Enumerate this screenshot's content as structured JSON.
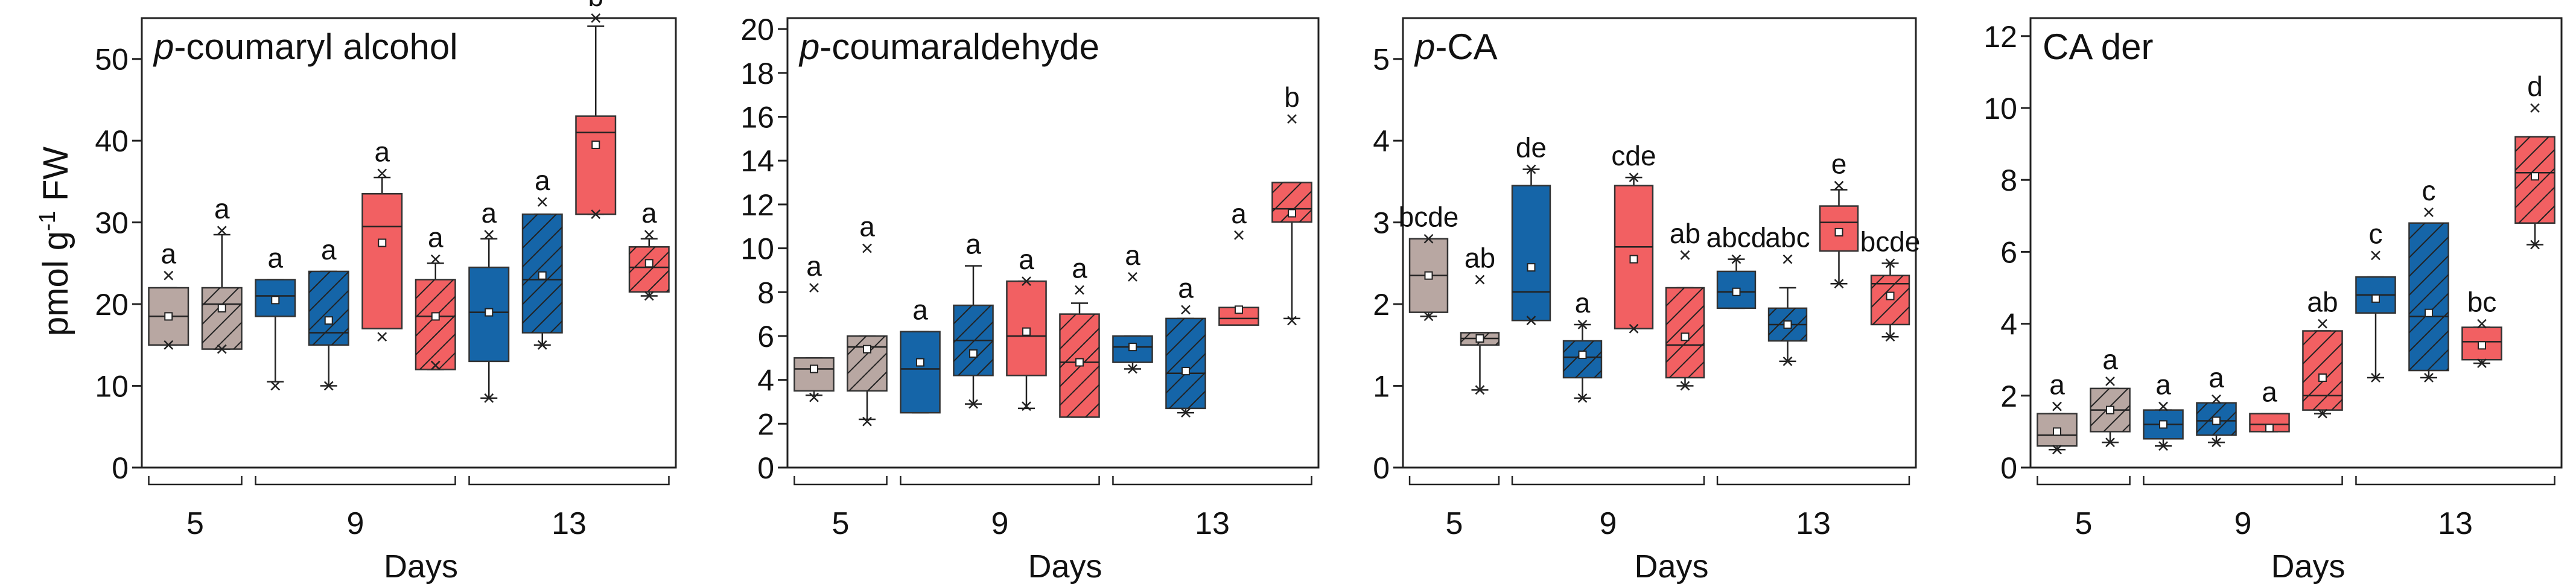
{
  "figure": {
    "y_axis_label_main": "pmol g",
    "y_axis_label_sup": "-1",
    "y_axis_label_tail": " FW",
    "x_axis_label": "Days"
  },
  "legend_note": {
    "colors": {
      "grey": "#b8a7a2",
      "blue": "#1565a8",
      "red": "#f26062",
      "hatch": "#222222",
      "whisker": "#222222"
    }
  },
  "chart_data": [
    {
      "type": "box",
      "title_italic": "p",
      "title_rest": "-coumaryl alcohol",
      "ylim": [
        0,
        55
      ],
      "yticks": [
        0,
        10,
        20,
        30,
        40,
        50
      ],
      "tick_labels": [
        "0",
        "10",
        "20",
        "30",
        "40",
        "50"
      ],
      "day_groups": [
        {
          "label": "5",
          "from": 0,
          "to": 1
        },
        {
          "label": "9",
          "from": 2,
          "to": 5
        },
        {
          "label": "13",
          "from": 6,
          "to": 9
        }
      ],
      "boxes": [
        {
          "color": "grey",
          "hatch": false,
          "q1": 15,
          "median": 18.5,
          "q3": 22,
          "whisker_low": 15,
          "whisker_high": 22,
          "mean": 18.5,
          "outliers": [
            15,
            23.5
          ],
          "letter": "a"
        },
        {
          "color": "grey",
          "hatch": true,
          "q1": 14.5,
          "median": 20,
          "q3": 22,
          "whisker_low": 14.5,
          "whisker_high": 28.5,
          "mean": 19.5,
          "outliers": [
            14.5,
            29
          ],
          "letter": "a"
        },
        {
          "color": "blue",
          "hatch": false,
          "q1": 18.5,
          "median": 21,
          "q3": 23,
          "whisker_low": 10.5,
          "whisker_high": 23,
          "mean": 20.5,
          "outliers": [
            10
          ],
          "letter": "a"
        },
        {
          "color": "blue",
          "hatch": true,
          "q1": 15,
          "median": 16.5,
          "q3": 24,
          "whisker_low": 10,
          "whisker_high": 24,
          "mean": 18,
          "outliers": [
            10
          ],
          "letter": "a"
        },
        {
          "color": "red",
          "hatch": false,
          "q1": 17,
          "median": 29.5,
          "q3": 33.5,
          "whisker_low": 17,
          "whisker_high": 35.5,
          "mean": 27.5,
          "outliers": [
            16,
            36
          ],
          "letter": "a"
        },
        {
          "color": "red",
          "hatch": true,
          "q1": 12,
          "median": 18.5,
          "q3": 23,
          "whisker_low": 12,
          "whisker_high": 25,
          "mean": 18.5,
          "outliers": [
            12.5,
            25.5
          ],
          "letter": "a"
        },
        {
          "color": "blue",
          "hatch": false,
          "q1": 13,
          "median": 19,
          "q3": 24.5,
          "whisker_low": 8.5,
          "whisker_high": 28,
          "mean": 19,
          "outliers": [
            8.5,
            28.5
          ],
          "letter": "a"
        },
        {
          "color": "blue",
          "hatch": true,
          "q1": 16.5,
          "median": 23,
          "q3": 31,
          "whisker_low": 15,
          "whisker_high": 31,
          "mean": 23.5,
          "outliers": [
            15,
            32.5
          ],
          "letter": "a"
        },
        {
          "color": "red",
          "hatch": false,
          "q1": 31,
          "median": 41,
          "q3": 43,
          "whisker_low": 31,
          "whisker_high": 54,
          "mean": 39.5,
          "outliers": [
            31,
            55
          ],
          "letter": "b"
        },
        {
          "color": "red",
          "hatch": true,
          "q1": 21.5,
          "median": 24.5,
          "q3": 27,
          "whisker_low": 21,
          "whisker_high": 28,
          "mean": 25,
          "outliers": [
            21,
            28.5
          ],
          "letter": "a"
        }
      ]
    },
    {
      "type": "box",
      "title_italic": "p",
      "title_rest": "-coumaraldehyde",
      "ylim": [
        0,
        20.5
      ],
      "yticks": [
        0,
        2,
        4,
        6,
        8,
        10,
        12,
        14,
        16,
        18,
        20
      ],
      "tick_labels": [
        "0",
        "2",
        "4",
        "6",
        "8",
        "10",
        "12",
        "14",
        "16",
        "18",
        "20"
      ],
      "day_groups": [
        {
          "label": "5",
          "from": 0,
          "to": 1
        },
        {
          "label": "9",
          "from": 2,
          "to": 5
        },
        {
          "label": "13",
          "from": 6,
          "to": 9
        }
      ],
      "boxes": [
        {
          "color": "grey",
          "hatch": false,
          "q1": 3.5,
          "median": 4.5,
          "q3": 5,
          "whisker_low": 3.3,
          "whisker_high": 5,
          "mean": 4.5,
          "outliers": [
            3.2,
            8.2
          ],
          "letter": "a"
        },
        {
          "color": "grey",
          "hatch": true,
          "q1": 3.5,
          "median": 5.5,
          "q3": 6,
          "whisker_low": 2.2,
          "whisker_high": 6,
          "mean": 5.4,
          "outliers": [
            2.1,
            10
          ],
          "letter": "a"
        },
        {
          "color": "blue",
          "hatch": false,
          "q1": 2.5,
          "median": 4.5,
          "q3": 6.2,
          "whisker_low": 2.5,
          "whisker_high": 6.2,
          "mean": 4.8,
          "outliers": [],
          "letter": "a"
        },
        {
          "color": "blue",
          "hatch": true,
          "q1": 4.2,
          "median": 5.8,
          "q3": 7.4,
          "whisker_low": 2.9,
          "whisker_high": 9.2,
          "mean": 5.2,
          "outliers": [
            2.9
          ],
          "letter": "a"
        },
        {
          "color": "red",
          "hatch": false,
          "q1": 4.2,
          "median": 6,
          "q3": 8.5,
          "whisker_low": 2.7,
          "whisker_high": 8.5,
          "mean": 6.2,
          "outliers": [
            2.8,
            8.5
          ],
          "letter": "a"
        },
        {
          "color": "red",
          "hatch": true,
          "q1": 2.3,
          "median": 4.8,
          "q3": 7,
          "whisker_low": 2.3,
          "whisker_high": 7.5,
          "mean": 4.8,
          "outliers": [
            8.1
          ],
          "letter": "a"
        },
        {
          "color": "blue",
          "hatch": false,
          "q1": 4.8,
          "median": 5.5,
          "q3": 6,
          "whisker_low": 4.5,
          "whisker_high": 6,
          "mean": 5.5,
          "outliers": [
            4.5,
            8.7
          ],
          "letter": "a"
        },
        {
          "color": "blue",
          "hatch": true,
          "q1": 2.7,
          "median": 4.3,
          "q3": 6.8,
          "whisker_low": 2.5,
          "whisker_high": 6.8,
          "mean": 4.4,
          "outliers": [
            2.5,
            7.2
          ],
          "letter": "a"
        },
        {
          "color": "red",
          "hatch": false,
          "q1": 6.5,
          "median": 6.8,
          "q3": 7.3,
          "whisker_low": 6.5,
          "whisker_high": 7.3,
          "mean": 7.2,
          "outliers": [
            10.6
          ],
          "letter": "a"
        },
        {
          "color": "red",
          "hatch": true,
          "q1": 11.2,
          "median": 11.8,
          "q3": 13,
          "whisker_low": 6.8,
          "whisker_high": 13,
          "mean": 11.6,
          "outliers": [
            6.7,
            15.9
          ],
          "letter": "b"
        }
      ]
    },
    {
      "type": "box",
      "title_italic": "p",
      "title_rest": "-CA",
      "ylim": [
        0,
        5.5
      ],
      "yticks": [
        0,
        1,
        2,
        3,
        4,
        5
      ],
      "tick_labels": [
        "0",
        "1",
        "2",
        "3",
        "4",
        "5"
      ],
      "day_groups": [
        {
          "label": "5",
          "from": 0,
          "to": 1
        },
        {
          "label": "9",
          "from": 2,
          "to": 5
        },
        {
          "label": "13",
          "from": 6,
          "to": 9
        }
      ],
      "boxes": [
        {
          "color": "grey",
          "hatch": false,
          "q1": 1.9,
          "median": 2.35,
          "q3": 2.8,
          "whisker_low": 1.85,
          "whisker_high": 2.8,
          "mean": 2.35,
          "outliers": [
            1.85,
            2.8
          ],
          "letter": "bcde"
        },
        {
          "color": "grey",
          "hatch": true,
          "q1": 1.5,
          "median": 1.58,
          "q3": 1.65,
          "whisker_low": 0.95,
          "whisker_high": 1.65,
          "mean": 1.58,
          "outliers": [
            0.95,
            2.3
          ],
          "letter": "ab"
        },
        {
          "color": "blue",
          "hatch": false,
          "q1": 1.8,
          "median": 2.15,
          "q3": 3.45,
          "whisker_low": 1.8,
          "whisker_high": 3.65,
          "mean": 2.45,
          "outliers": [
            1.8,
            3.65
          ],
          "letter": "de"
        },
        {
          "color": "blue",
          "hatch": true,
          "q1": 1.1,
          "median": 1.35,
          "q3": 1.55,
          "whisker_low": 0.85,
          "whisker_high": 1.75,
          "mean": 1.38,
          "outliers": [
            0.85,
            1.75
          ],
          "letter": "a"
        },
        {
          "color": "red",
          "hatch": false,
          "q1": 1.7,
          "median": 2.7,
          "q3": 3.45,
          "whisker_low": 1.7,
          "whisker_high": 3.55,
          "mean": 2.55,
          "outliers": [
            1.7,
            3.55
          ],
          "letter": "cde"
        },
        {
          "color": "red",
          "hatch": true,
          "q1": 1.1,
          "median": 1.5,
          "q3": 2.2,
          "whisker_low": 1,
          "whisker_high": 2.2,
          "mean": 1.6,
          "outliers": [
            1.0,
            2.6
          ],
          "letter": "ab"
        },
        {
          "color": "blue",
          "hatch": false,
          "q1": 1.95,
          "median": 2.15,
          "q3": 2.4,
          "whisker_low": 1.95,
          "whisker_high": 2.55,
          "mean": 2.15,
          "outliers": [
            2.55
          ],
          "letter": "abcd"
        },
        {
          "color": "blue",
          "hatch": true,
          "q1": 1.55,
          "median": 1.75,
          "q3": 1.95,
          "whisker_low": 1.3,
          "whisker_high": 2.2,
          "mean": 1.75,
          "outliers": [
            1.3,
            2.55
          ],
          "letter": "abc"
        },
        {
          "color": "red",
          "hatch": false,
          "q1": 2.65,
          "median": 3.0,
          "q3": 3.2,
          "whisker_low": 2.25,
          "whisker_high": 3.4,
          "mean": 2.88,
          "outliers": [
            2.25,
            3.45
          ],
          "letter": "e"
        },
        {
          "color": "red",
          "hatch": true,
          "q1": 1.75,
          "median": 2.25,
          "q3": 2.35,
          "whisker_low": 1.6,
          "whisker_high": 2.5,
          "mean": 2.1,
          "outliers": [
            1.6,
            2.5
          ],
          "letter": "bcde"
        }
      ]
    },
    {
      "type": "box",
      "title_italic": "",
      "title_rest": "CA der",
      "ylim": [
        0,
        12.5
      ],
      "yticks": [
        0,
        2,
        4,
        6,
        8,
        10,
        12
      ],
      "tick_labels": [
        "0",
        "2",
        "4",
        "6",
        "8",
        "10",
        "12"
      ],
      "day_groups": [
        {
          "label": "5",
          "from": 0,
          "to": 1
        },
        {
          "label": "9",
          "from": 2,
          "to": 5
        },
        {
          "label": "13",
          "from": 6,
          "to": 9
        }
      ],
      "boxes": [
        {
          "color": "grey",
          "hatch": false,
          "q1": 0.6,
          "median": 0.9,
          "q3": 1.5,
          "whisker_low": 0.5,
          "whisker_high": 1.5,
          "mean": 1.0,
          "outliers": [
            0.5,
            1.7
          ],
          "letter": "a"
        },
        {
          "color": "grey",
          "hatch": true,
          "q1": 1.0,
          "median": 1.6,
          "q3": 2.2,
          "whisker_low": 0.7,
          "whisker_high": 2.2,
          "mean": 1.6,
          "outliers": [
            0.7,
            2.4
          ],
          "letter": "a"
        },
        {
          "color": "blue",
          "hatch": false,
          "q1": 0.8,
          "median": 1.2,
          "q3": 1.6,
          "whisker_low": 0.6,
          "whisker_high": 1.6,
          "mean": 1.2,
          "outliers": [
            0.6,
            1.7
          ],
          "letter": "a"
        },
        {
          "color": "blue",
          "hatch": true,
          "q1": 0.9,
          "median": 1.3,
          "q3": 1.8,
          "whisker_low": 0.7,
          "whisker_high": 1.8,
          "mean": 1.3,
          "outliers": [
            0.7,
            1.9
          ],
          "letter": "a"
        },
        {
          "color": "red",
          "hatch": false,
          "q1": 1.0,
          "median": 1.2,
          "q3": 1.5,
          "whisker_low": 1.0,
          "whisker_high": 1.5,
          "mean": 1.1,
          "outliers": [],
          "letter": "a"
        },
        {
          "color": "red",
          "hatch": true,
          "q1": 1.6,
          "median": 2.0,
          "q3": 3.8,
          "whisker_low": 1.5,
          "whisker_high": 3.8,
          "mean": 2.5,
          "outliers": [
            1.5,
            4.0
          ],
          "letter": "ab"
        },
        {
          "color": "blue",
          "hatch": false,
          "q1": 4.3,
          "median": 4.8,
          "q3": 5.3,
          "whisker_low": 2.5,
          "whisker_high": 5.3,
          "mean": 4.7,
          "outliers": [
            2.5,
            5.9
          ],
          "letter": "c"
        },
        {
          "color": "blue",
          "hatch": true,
          "q1": 2.7,
          "median": 4.2,
          "q3": 6.8,
          "whisker_low": 2.5,
          "whisker_high": 6.8,
          "mean": 4.3,
          "outliers": [
            2.5,
            7.1
          ],
          "letter": "c"
        },
        {
          "color": "red",
          "hatch": false,
          "q1": 3.0,
          "median": 3.5,
          "q3": 3.9,
          "whisker_low": 2.9,
          "whisker_high": 3.9,
          "mean": 3.4,
          "outliers": [
            2.9,
            4.0
          ],
          "letter": "bc"
        },
        {
          "color": "red",
          "hatch": true,
          "q1": 6.8,
          "median": 8.2,
          "q3": 9.2,
          "whisker_low": 6.2,
          "whisker_high": 9.2,
          "mean": 8.1,
          "outliers": [
            6.2,
            10.0
          ],
          "letter": "d"
        }
      ]
    }
  ]
}
